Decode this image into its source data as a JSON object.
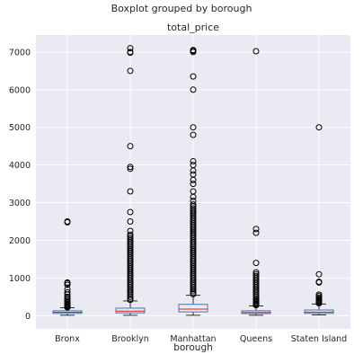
{
  "chart_data": {
    "type": "boxplot",
    "suptitle": "Boxplot grouped by borough",
    "title": "total_price",
    "xlabel": "borough",
    "ylabel": "",
    "ylim": [
      -350,
      7450
    ],
    "yticks": [
      0,
      1000,
      2000,
      3000,
      4000,
      5000,
      6000,
      7000
    ],
    "grid": true,
    "categories": [
      "Bronx",
      "Brooklyn",
      "Manhattan",
      "Queens",
      "Staten Island"
    ],
    "boxes": [
      {
        "name": "Bronx",
        "whisker_low": 10,
        "q1": 60,
        "median": 90,
        "q3": 130,
        "whisker_high": 210,
        "outliers": [
          2500,
          2480,
          880,
          860,
          820,
          700,
          620,
          560,
          500,
          460,
          420,
          380,
          350,
          320,
          300,
          280,
          260,
          240,
          230,
          220
        ]
      },
      {
        "name": "Brooklyn",
        "whisker_low": 10,
        "q1": 75,
        "median": 120,
        "q3": 200,
        "whisker_high": 390,
        "outliers": [
          7100,
          7000,
          6980,
          6500,
          4500,
          3950,
          3900,
          3300,
          2750,
          2500,
          2250,
          2150,
          2100,
          2050,
          2000,
          1950,
          1900,
          1850,
          1800,
          1750,
          1700,
          1650,
          1600,
          1550,
          1500,
          1450,
          1400,
          1350,
          1300,
          1250,
          1200,
          1150,
          1100,
          1050,
          1000,
          950,
          900,
          850,
          800,
          750,
          700,
          650,
          600,
          550,
          500,
          450,
          420
        ]
      },
      {
        "name": "Manhattan",
        "whisker_low": 10,
        "q1": 100,
        "median": 175,
        "q3": 300,
        "whisker_high": 540,
        "outliers": [
          7050,
          7030,
          7000,
          6350,
          6000,
          5000,
          4800,
          4100,
          4000,
          3850,
          3750,
          3600,
          3500,
          3300,
          3150,
          3050,
          2950,
          2900,
          2850,
          2800,
          2750,
          2700,
          2650,
          2600,
          2550,
          2500,
          2450,
          2400,
          2350,
          2300,
          2250,
          2200,
          2150,
          2100,
          2050,
          2000,
          1950,
          1900,
          1850,
          1800,
          1750,
          1700,
          1650,
          1600,
          1550,
          1500,
          1450,
          1400,
          1350,
          1300,
          1250,
          1200,
          1150,
          1100,
          1050,
          1000,
          950,
          900,
          850,
          800,
          750,
          700,
          650,
          600,
          570
        ]
      },
      {
        "name": "Queens",
        "whisker_low": 10,
        "q1": 55,
        "median": 85,
        "q3": 130,
        "whisker_high": 260,
        "outliers": [
          7020,
          2300,
          2200,
          1400,
          1150,
          1100,
          1050,
          1000,
          950,
          900,
          850,
          800,
          750,
          700,
          650,
          600,
          550,
          500,
          450,
          420,
          390,
          360,
          330,
          300,
          280
        ]
      },
      {
        "name": "Staten Island",
        "whisker_low": 20,
        "q1": 60,
        "median": 95,
        "q3": 150,
        "whisker_high": 310,
        "outliers": [
          5000,
          1100,
          900,
          880,
          560,
          520,
          480,
          450,
          420,
          400,
          380,
          360,
          340,
          330
        ]
      }
    ]
  }
}
